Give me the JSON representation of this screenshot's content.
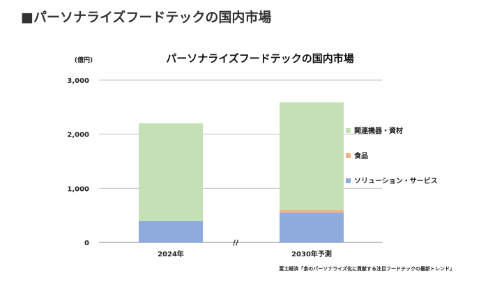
{
  "page": {
    "heading": "■パーソナライズフードテックの国内市場"
  },
  "chart_data": {
    "type": "bar",
    "stacked": true,
    "title": "パーソナライズフードテックの国内市場",
    "unit": "(億円)",
    "categories": [
      "2024年",
      "2030年予測"
    ],
    "series": [
      {
        "name": "ソリューション・サービス",
        "values": [
          400,
          550
        ],
        "color": "#8faadc"
      },
      {
        "name": "食品",
        "values": [
          0,
          50
        ],
        "color": "#f4b183"
      },
      {
        "name": "関連機器・資材",
        "values": [
          1800,
          1990
        ],
        "color": "#c5e0b4"
      }
    ],
    "yticks": [
      "0",
      "1,000",
      "2,000",
      "3,000"
    ],
    "ylim": [
      0,
      3000
    ],
    "grid": true,
    "legend_position": "right",
    "axis_break_mark": "//",
    "source": "富士経済「食のパーソナライズ化に貢献する注目フードテックの最新トレンド」"
  }
}
